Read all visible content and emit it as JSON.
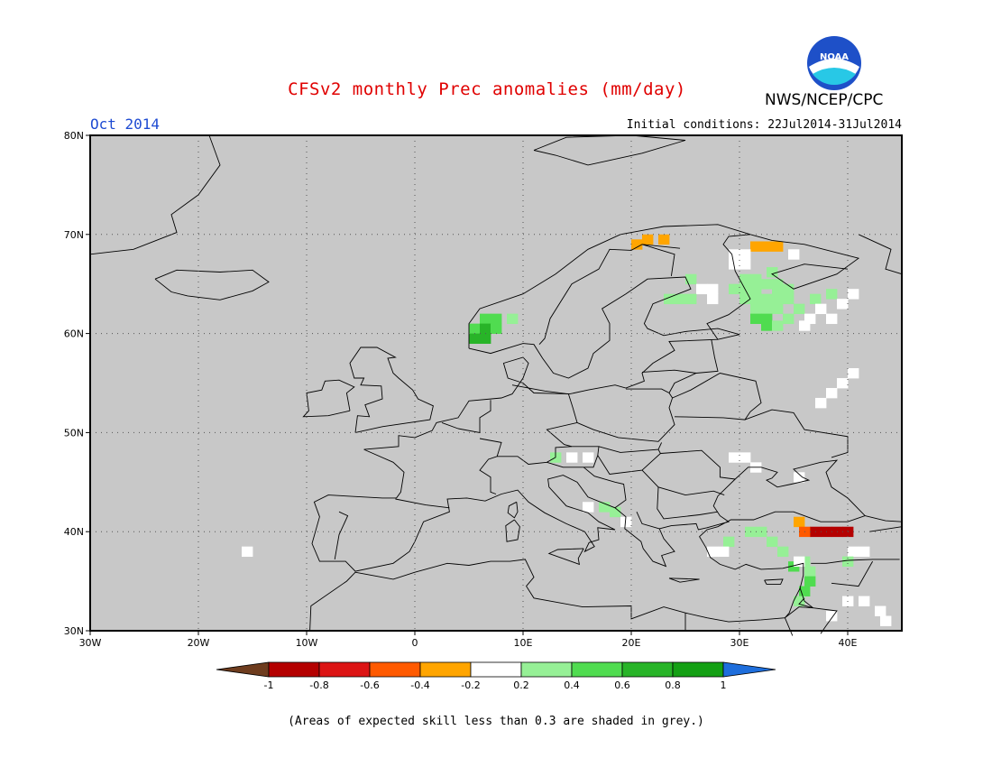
{
  "header": {
    "title": "CFSv2 monthly Prec anomalies (mm/day)",
    "organization": "NWS/NCEP/CPC",
    "logo_text": "NOAA",
    "valid_month": "Oct 2014",
    "initial_conditions": "Initial conditions: 22Jul2014-31Jul2014"
  },
  "map": {
    "lon_range": [
      -30,
      45
    ],
    "lat_range": [
      30,
      80
    ],
    "background_color": "#c8c8c8",
    "grid": true,
    "lon_ticks": [
      {
        "value": -30,
        "label": "30W"
      },
      {
        "value": -20,
        "label": "20W"
      },
      {
        "value": -10,
        "label": "10W"
      },
      {
        "value": 0,
        "label": "0"
      },
      {
        "value": 10,
        "label": "10E"
      },
      {
        "value": 20,
        "label": "20E"
      },
      {
        "value": 30,
        "label": "30E"
      },
      {
        "value": 40,
        "label": "40E"
      }
    ],
    "lat_ticks": [
      {
        "value": 30,
        "label": "30N"
      },
      {
        "value": 40,
        "label": "40N"
      },
      {
        "value": 50,
        "label": "50N"
      },
      {
        "value": 60,
        "label": "60N"
      },
      {
        "value": 70,
        "label": "70N"
      },
      {
        "value": 80,
        "label": "80N"
      }
    ],
    "anomaly_cells": [
      {
        "lon": 20.5,
        "lat": 69.0,
        "value": -0.3
      },
      {
        "lon": 21.5,
        "lat": 69.5,
        "value": -0.3
      },
      {
        "lon": 23.0,
        "lat": 69.5,
        "value": -0.3
      },
      {
        "lon": 31.5,
        "lat": 68.8,
        "value": -0.3
      },
      {
        "lon": 32.5,
        "lat": 68.8,
        "value": -0.3
      },
      {
        "lon": 33.5,
        "lat": 68.8,
        "value": -0.3
      },
      {
        "lon": 29.5,
        "lat": 68.0,
        "value": 0.0
      },
      {
        "lon": 30.5,
        "lat": 68.0,
        "value": 0.0
      },
      {
        "lon": 35.0,
        "lat": 68.0,
        "value": 0.0
      },
      {
        "lon": 29.5,
        "lat": 67.0,
        "value": 0.0
      },
      {
        "lon": 30.5,
        "lat": 67.0,
        "value": 0.0
      },
      {
        "lon": 33.0,
        "lat": 66.2,
        "value": 0.3
      },
      {
        "lon": 25.5,
        "lat": 65.5,
        "value": 0.3
      },
      {
        "lon": 30.5,
        "lat": 65.5,
        "value": 0.3
      },
      {
        "lon": 31.5,
        "lat": 65.5,
        "value": 0.3
      },
      {
        "lon": 32.5,
        "lat": 65.0,
        "value": 0.3
      },
      {
        "lon": 33.5,
        "lat": 65.0,
        "value": 0.3
      },
      {
        "lon": 26.5,
        "lat": 64.5,
        "value": 0.0
      },
      {
        "lon": 27.5,
        "lat": 64.5,
        "value": 0.0
      },
      {
        "lon": 29.5,
        "lat": 64.5,
        "value": 0.3
      },
      {
        "lon": 30.5,
        "lat": 64.5,
        "value": 0.3
      },
      {
        "lon": 31.5,
        "lat": 64.5,
        "value": 0.3
      },
      {
        "lon": 33.5,
        "lat": 64.5,
        "value": 0.3
      },
      {
        "lon": 34.5,
        "lat": 64.5,
        "value": 0.3
      },
      {
        "lon": 38.5,
        "lat": 64.0,
        "value": 0.3
      },
      {
        "lon": 40.5,
        "lat": 64.0,
        "value": 0.0
      },
      {
        "lon": 23.5,
        "lat": 63.5,
        "value": 0.3
      },
      {
        "lon": 24.5,
        "lat": 63.5,
        "value": 0.3
      },
      {
        "lon": 25.5,
        "lat": 63.5,
        "value": 0.3
      },
      {
        "lon": 27.5,
        "lat": 63.5,
        "value": 0.0
      },
      {
        "lon": 30.5,
        "lat": 63.5,
        "value": 0.3
      },
      {
        "lon": 31.5,
        "lat": 63.5,
        "value": 0.3
      },
      {
        "lon": 32.5,
        "lat": 63.5,
        "value": 0.3
      },
      {
        "lon": 33.5,
        "lat": 63.5,
        "value": 0.3
      },
      {
        "lon": 34.5,
        "lat": 63.5,
        "value": 0.3
      },
      {
        "lon": 37.0,
        "lat": 63.5,
        "value": 0.3
      },
      {
        "lon": 39.5,
        "lat": 63.0,
        "value": 0.0
      },
      {
        "lon": 6.5,
        "lat": 61.5,
        "value": 0.5
      },
      {
        "lon": 7.5,
        "lat": 61.5,
        "value": 0.5
      },
      {
        "lon": 9.0,
        "lat": 61.5,
        "value": 0.3
      },
      {
        "lon": 31.5,
        "lat": 62.5,
        "value": 0.3
      },
      {
        "lon": 32.5,
        "lat": 62.5,
        "value": 0.3
      },
      {
        "lon": 33.5,
        "lat": 62.5,
        "value": 0.3
      },
      {
        "lon": 35.5,
        "lat": 62.5,
        "value": 0.3
      },
      {
        "lon": 37.5,
        "lat": 62.5,
        "value": 0.0
      },
      {
        "lon": 5.5,
        "lat": 60.5,
        "value": 0.5
      },
      {
        "lon": 6.5,
        "lat": 60.5,
        "value": 0.7
      },
      {
        "lon": 7.5,
        "lat": 60.5,
        "value": 0.5
      },
      {
        "lon": 31.5,
        "lat": 61.5,
        "value": 0.5
      },
      {
        "lon": 32.5,
        "lat": 61.5,
        "value": 0.5
      },
      {
        "lon": 34.5,
        "lat": 61.5,
        "value": 0.3
      },
      {
        "lon": 36.5,
        "lat": 61.5,
        "value": 0.0
      },
      {
        "lon": 38.5,
        "lat": 61.5,
        "value": 0.0
      },
      {
        "lon": 5.5,
        "lat": 59.5,
        "value": 0.7
      },
      {
        "lon": 6.5,
        "lat": 59.5,
        "value": 0.7
      },
      {
        "lon": 32.5,
        "lat": 60.8,
        "value": 0.5
      },
      {
        "lon": 33.5,
        "lat": 60.8,
        "value": 0.3
      },
      {
        "lon": 36.0,
        "lat": 60.8,
        "value": 0.0
      },
      {
        "lon": 40.5,
        "lat": 56.0,
        "value": 0.0
      },
      {
        "lon": 39.5,
        "lat": 55.0,
        "value": 0.0
      },
      {
        "lon": 38.5,
        "lat": 54.0,
        "value": 0.0
      },
      {
        "lon": 37.5,
        "lat": 53.0,
        "value": 0.0
      },
      {
        "lon": 13.0,
        "lat": 47.5,
        "value": 0.3
      },
      {
        "lon": 14.5,
        "lat": 47.5,
        "value": 0.0
      },
      {
        "lon": 16.0,
        "lat": 47.5,
        "value": 0.0
      },
      {
        "lon": 29.5,
        "lat": 47.5,
        "value": 0.0
      },
      {
        "lon": 30.5,
        "lat": 47.5,
        "value": 0.0
      },
      {
        "lon": 31.5,
        "lat": 46.5,
        "value": 0.0
      },
      {
        "lon": 35.5,
        "lat": 45.5,
        "value": 0.0
      },
      {
        "lon": 16.0,
        "lat": 42.5,
        "value": 0.0
      },
      {
        "lon": 17.5,
        "lat": 42.5,
        "value": 0.3
      },
      {
        "lon": 18.5,
        "lat": 42.0,
        "value": 0.3
      },
      {
        "lon": 19.5,
        "lat": 41.0,
        "value": 0.0
      },
      {
        "lon": 35.5,
        "lat": 41.0,
        "value": -0.3
      },
      {
        "lon": 37.0,
        "lat": 40.0,
        "value": -0.9
      },
      {
        "lon": 38.0,
        "lat": 40.0,
        "value": -0.9
      },
      {
        "lon": 39.0,
        "lat": 40.0,
        "value": -0.9
      },
      {
        "lon": 40.0,
        "lat": 40.0,
        "value": -0.9
      },
      {
        "lon": 36.0,
        "lat": 40.0,
        "value": -0.5
      },
      {
        "lon": 31.0,
        "lat": 40.0,
        "value": 0.3
      },
      {
        "lon": 32.0,
        "lat": 40.0,
        "value": 0.3
      },
      {
        "lon": 33.0,
        "lat": 39.0,
        "value": 0.3
      },
      {
        "lon": 29.0,
        "lat": 39.0,
        "value": 0.3
      },
      {
        "lon": 34.0,
        "lat": 38.0,
        "value": 0.3
      },
      {
        "lon": 36.0,
        "lat": 37.0,
        "value": 0.3
      },
      {
        "lon": 35.0,
        "lat": 36.5,
        "value": 0.5
      },
      {
        "lon": 36.5,
        "lat": 36.0,
        "value": 0.3
      },
      {
        "lon": 36.5,
        "lat": 35.0,
        "value": 0.5
      },
      {
        "lon": 36.0,
        "lat": 34.0,
        "value": 0.5
      },
      {
        "lon": 35.5,
        "lat": 33.0,
        "value": 0.3
      },
      {
        "lon": 27.5,
        "lat": 38.0,
        "value": 0.0
      },
      {
        "lon": 28.5,
        "lat": 38.0,
        "value": 0.0
      },
      {
        "lon": 40.5,
        "lat": 38.0,
        "value": 0.0
      },
      {
        "lon": 41.5,
        "lat": 38.0,
        "value": 0.0
      },
      {
        "lon": 40.0,
        "lat": 37.0,
        "value": 0.3
      },
      {
        "lon": 35.5,
        "lat": 37.0,
        "value": 0.0
      },
      {
        "lon": 40.0,
        "lat": 33.0,
        "value": 0.0
      },
      {
        "lon": 41.5,
        "lat": 33.0,
        "value": 0.0
      },
      {
        "lon": 43.0,
        "lat": 32.0,
        "value": 0.0
      },
      {
        "lon": 38.5,
        "lat": 31.5,
        "value": 0.0
      },
      {
        "lon": 43.5,
        "lat": 31.0,
        "value": 0.0
      },
      {
        "lon": -15.5,
        "lat": 38.0,
        "value": 0.0
      }
    ]
  },
  "colorbar": {
    "labels": [
      "-1",
      "-0.8",
      "-0.6",
      "-0.4",
      "-0.2",
      "0.2",
      "0.4",
      "0.6",
      "0.8",
      "1"
    ],
    "colors": [
      "#6e3c1e",
      "#b40000",
      "#dc1414",
      "#ff5a00",
      "#ffa500",
      "#ffffff",
      "#96f096",
      "#50dc50",
      "#28b428",
      "#14a014",
      "#1e6edc"
    ]
  },
  "footer": {
    "note": "(Areas of expected skill less than 0.3 are shaded in grey.)"
  }
}
